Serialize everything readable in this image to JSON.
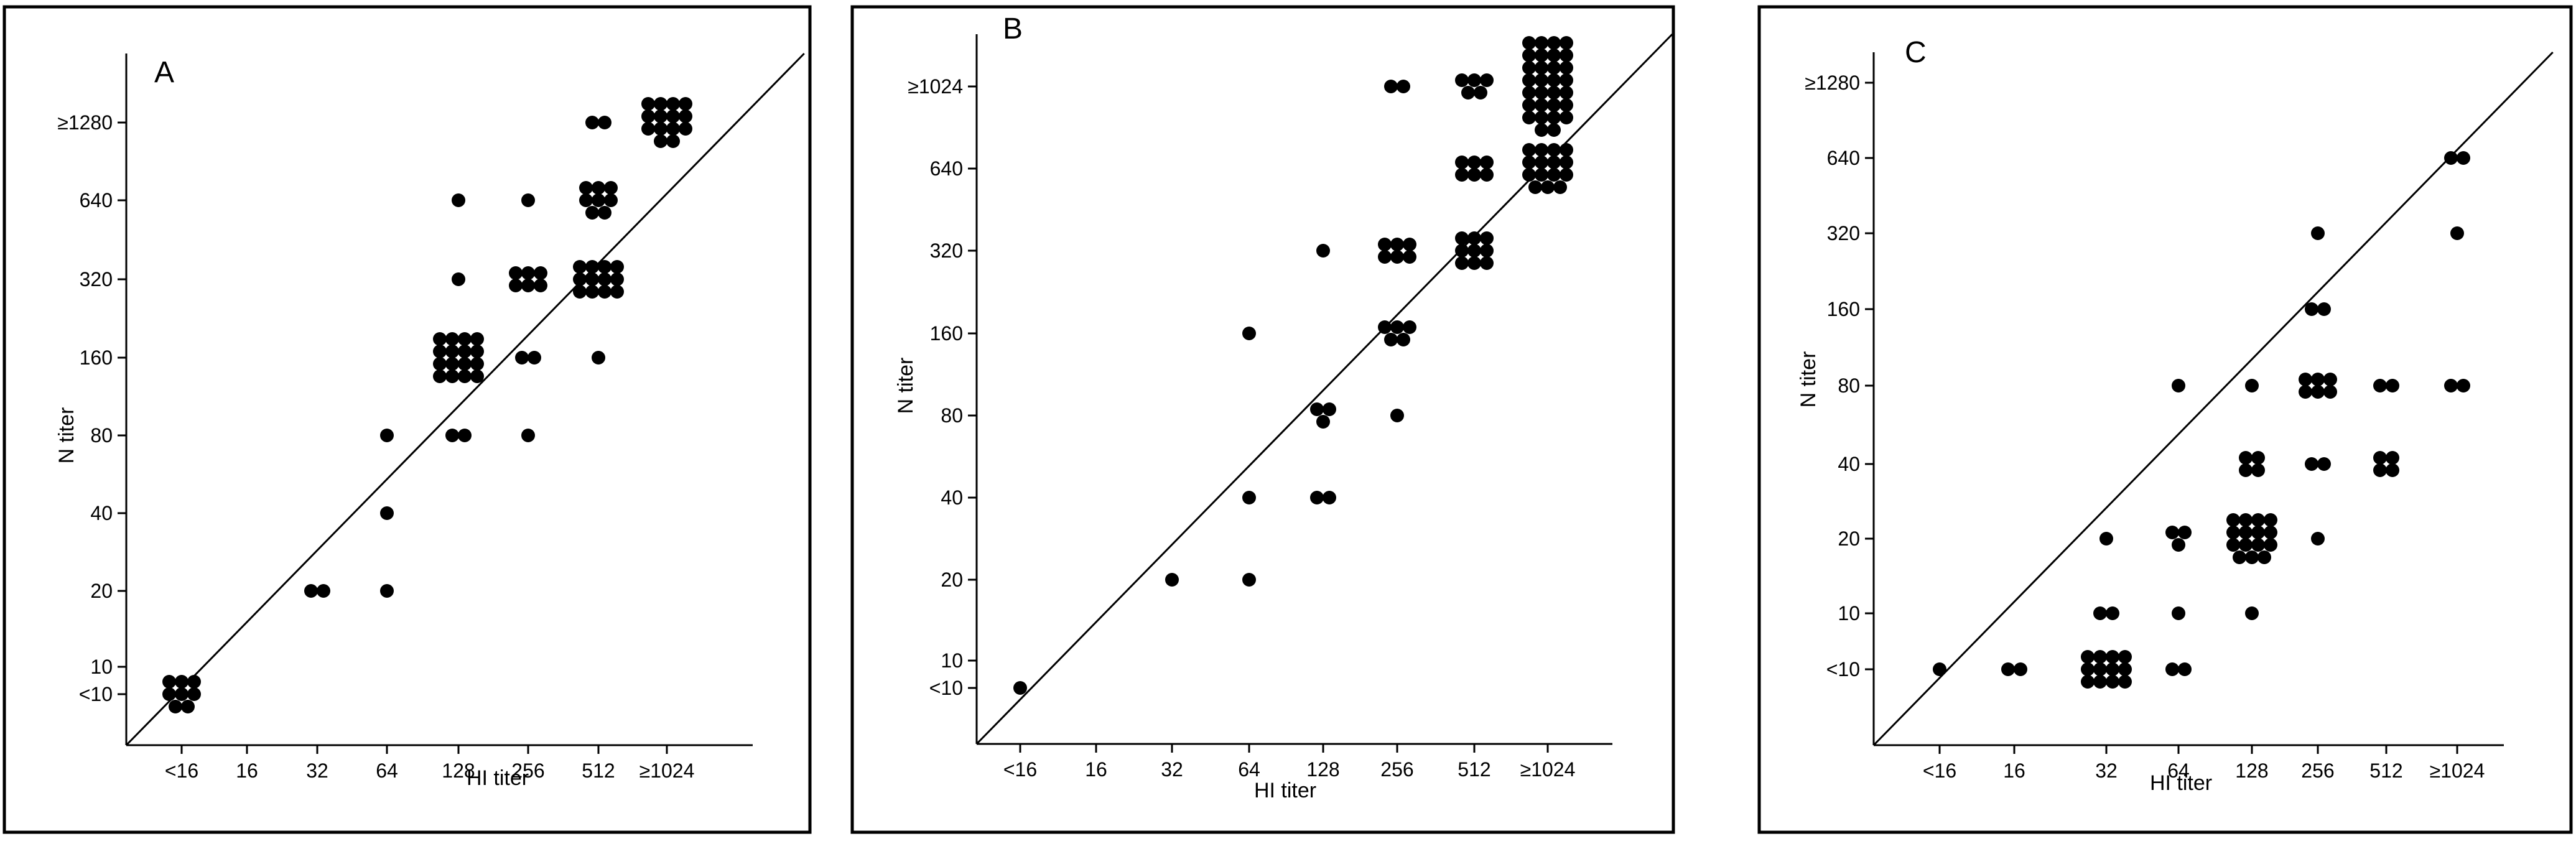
{
  "chart_data": [
    {
      "type": "scatter",
      "panel_label": "A",
      "xlabel": "HI titer",
      "ylabel": "N titer",
      "x_ticks": [
        "<16",
        "16",
        "32",
        "64",
        "128",
        "256",
        "512",
        "≥1024"
      ],
      "y_ticks": [
        "<10",
        "10",
        "20",
        "40",
        "80",
        "160",
        "320",
        "640",
        "≥1280"
      ],
      "diagonal": true,
      "points": [
        {
          "x": "<16",
          "y": "<10",
          "count": 8
        },
        {
          "x": "32",
          "y": "20",
          "count": 2
        },
        {
          "x": "64",
          "y": "20",
          "count": 1
        },
        {
          "x": "64",
          "y": "40",
          "count": 1
        },
        {
          "x": "64",
          "y": "80",
          "count": 1
        },
        {
          "x": "128",
          "y": "80",
          "count": 2
        },
        {
          "x": "128",
          "y": "160",
          "count": 16
        },
        {
          "x": "128",
          "y": "320",
          "count": 1
        },
        {
          "x": "128",
          "y": "640",
          "count": 1
        },
        {
          "x": "256",
          "y": "80",
          "count": 1
        },
        {
          "x": "256",
          "y": "160",
          "count": 2
        },
        {
          "x": "256",
          "y": "320",
          "count": 6
        },
        {
          "x": "256",
          "y": "640",
          "count": 1
        },
        {
          "x": "512",
          "y": "160",
          "count": 1
        },
        {
          "x": "512",
          "y": "320",
          "count": 12
        },
        {
          "x": "512",
          "y": "640",
          "count": 8
        },
        {
          "x": "512",
          "y": "≥1280",
          "count": 2
        },
        {
          "x": "≥1024",
          "y": "≥1280",
          "count": 14
        }
      ]
    },
    {
      "type": "scatter",
      "panel_label": "B",
      "xlabel": "HI titer",
      "ylabel": "N titer",
      "x_ticks": [
        "<16",
        "16",
        "32",
        "64",
        "128",
        "256",
        "512",
        "≥1024"
      ],
      "y_ticks": [
        "<10",
        "10",
        "20",
        "40",
        "80",
        "160",
        "320",
        "640",
        "≥1024"
      ],
      "diagonal": true,
      "points": [
        {
          "x": "<16",
          "y": "<10",
          "count": 1
        },
        {
          "x": "32",
          "y": "20",
          "count": 1
        },
        {
          "x": "64",
          "y": "20",
          "count": 1
        },
        {
          "x": "64",
          "y": "40",
          "count": 1
        },
        {
          "x": "64",
          "y": "160",
          "count": 1
        },
        {
          "x": "128",
          "y": "40",
          "count": 2
        },
        {
          "x": "128",
          "y": "80",
          "count": 3
        },
        {
          "x": "128",
          "y": "320",
          "count": 1
        },
        {
          "x": "256",
          "y": "80",
          "count": 1
        },
        {
          "x": "256",
          "y": "160",
          "count": 5
        },
        {
          "x": "256",
          "y": "320",
          "count": 6
        },
        {
          "x": "256",
          "y": "≥1024",
          "count": 2
        },
        {
          "x": "512",
          "y": "320",
          "count": 9
        },
        {
          "x": "512",
          "y": "640",
          "count": 6
        },
        {
          "x": "512",
          "y": "≥1024",
          "count": 5
        },
        {
          "x": "≥1024",
          "y": "640",
          "count": 15
        },
        {
          "x": "≥1024",
          "y": "≥1024",
          "count": 30
        }
      ]
    },
    {
      "type": "scatter",
      "panel_label": "C",
      "xlabel": "HI titer",
      "ylabel": "N titer",
      "x_ticks": [
        "<16",
        "16",
        "32",
        "64",
        "128",
        "256",
        "512",
        "≥1024"
      ],
      "y_ticks": [
        "<10",
        "10",
        "20",
        "40",
        "80",
        "160",
        "320",
        "640",
        "≥1280"
      ],
      "diagonal": true,
      "points": [
        {
          "x": "<16",
          "y": "<10",
          "count": 1
        },
        {
          "x": "16",
          "y": "<10",
          "count": 2
        },
        {
          "x": "32",
          "y": "<10",
          "count": 12
        },
        {
          "x": "32",
          "y": "10",
          "count": 2
        },
        {
          "x": "32",
          "y": "20",
          "count": 1
        },
        {
          "x": "64",
          "y": "<10",
          "count": 2
        },
        {
          "x": "64",
          "y": "10",
          "count": 1
        },
        {
          "x": "64",
          "y": "20",
          "count": 3
        },
        {
          "x": "64",
          "y": "80",
          "count": 1
        },
        {
          "x": "128",
          "y": "10",
          "count": 1
        },
        {
          "x": "128",
          "y": "20",
          "count": 15
        },
        {
          "x": "128",
          "y": "40",
          "count": 4
        },
        {
          "x": "128",
          "y": "80",
          "count": 1
        },
        {
          "x": "256",
          "y": "20",
          "count": 1
        },
        {
          "x": "256",
          "y": "40",
          "count": 2
        },
        {
          "x": "256",
          "y": "80",
          "count": 6
        },
        {
          "x": "256",
          "y": "160",
          "count": 2
        },
        {
          "x": "256",
          "y": "320",
          "count": 1
        },
        {
          "x": "512",
          "y": "40",
          "count": 4
        },
        {
          "x": "512",
          "y": "80",
          "count": 2
        },
        {
          "x": "≥1024",
          "y": "80",
          "count": 2
        },
        {
          "x": "≥1024",
          "y": "320",
          "count": 1
        },
        {
          "x": "≥1024",
          "y": "640",
          "count": 2
        }
      ]
    }
  ]
}
